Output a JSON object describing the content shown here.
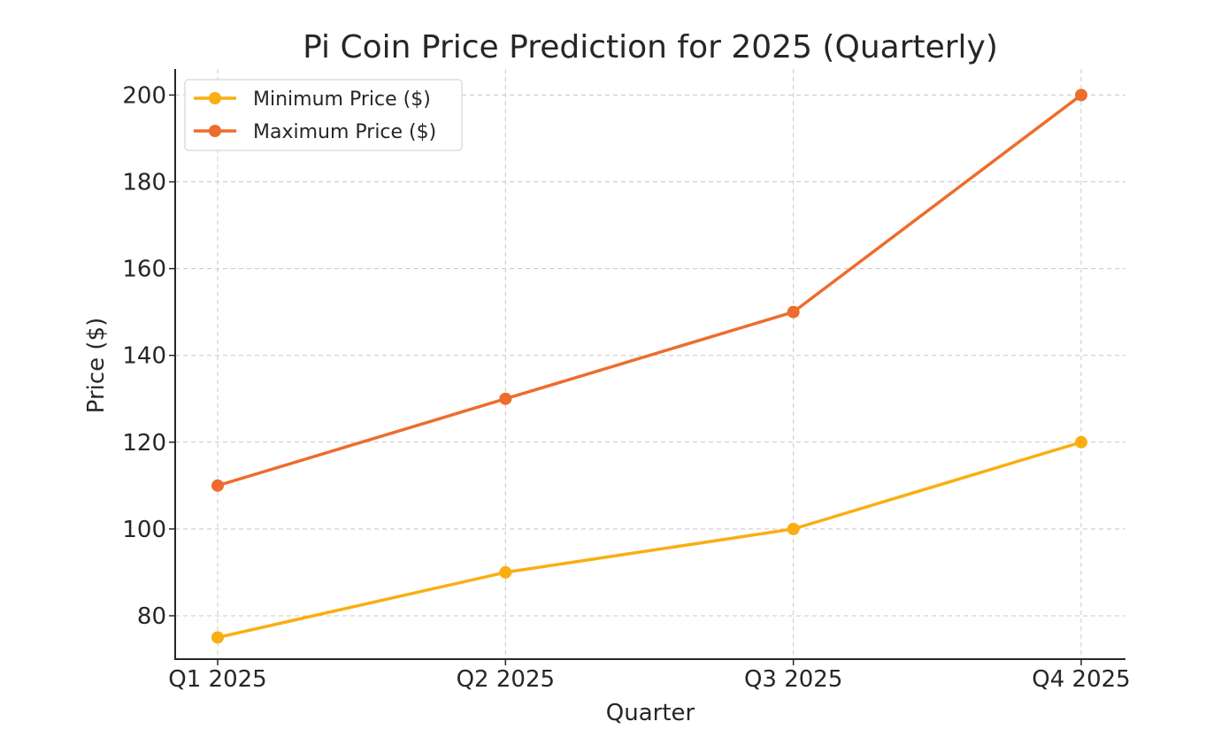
{
  "chart_data": {
    "type": "line",
    "title": "Pi Coin Price Prediction for 2025 (Quarterly)",
    "xlabel": "Quarter",
    "ylabel": "Price ($)",
    "categories": [
      "Q1 2025",
      "Q2 2025",
      "Q3 2025",
      "Q4 2025"
    ],
    "ylim": [
      70,
      206
    ],
    "yticks": [
      80,
      100,
      120,
      140,
      160,
      180,
      200
    ],
    "grid": true,
    "legend_position": "top-left",
    "series": [
      {
        "name": "Minimum Price ($)",
        "values": [
          75,
          90,
          100,
          120
        ],
        "color": "#F9AE11"
      },
      {
        "name": "Maximum Price ($)",
        "values": [
          110,
          130,
          150,
          200
        ],
        "color": "#EE6C2C"
      }
    ]
  }
}
